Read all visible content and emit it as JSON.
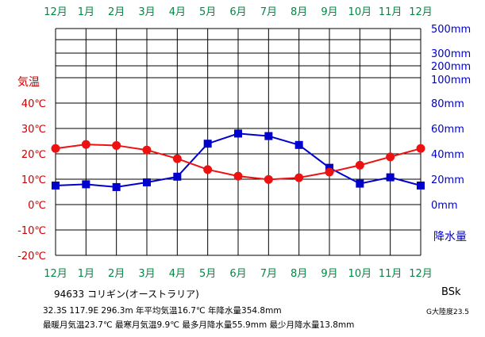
{
  "chart_data": {
    "type": "line",
    "months_top": [
      "12月",
      "1月",
      "2月",
      "3月",
      "4月",
      "5月",
      "6月",
      "7月",
      "8月",
      "9月",
      "10月",
      "11月",
      "12月"
    ],
    "months_bottom": [
      "12月",
      "1月",
      "2月",
      "3月",
      "4月",
      "5月",
      "6月",
      "7月",
      "8月",
      "9月",
      "10月",
      "11月",
      "12月"
    ],
    "temp_axis": {
      "title": "気温",
      "ticks": [
        "40℃",
        "30℃",
        "20℃",
        "10℃",
        "0℃",
        "-10℃",
        "-20℃"
      ],
      "tick_values": [
        40,
        30,
        20,
        10,
        0,
        -10,
        -20
      ],
      "ylim": [
        -20,
        40
      ]
    },
    "precip_axis": {
      "title": "降水量",
      "ticks": [
        "500mm",
        "300mm",
        "200mm",
        "100mm",
        "80mm",
        "60mm",
        "40mm",
        "20mm",
        "0mm"
      ],
      "tick_values": [
        500,
        300,
        200,
        100,
        80,
        60,
        40,
        20,
        0
      ]
    },
    "series": [
      {
        "name": "気温",
        "color": "#ee1111",
        "values": [
          22.1,
          23.7,
          23.3,
          21.5,
          18.1,
          13.8,
          11.2,
          9.9,
          10.6,
          12.8,
          15.5,
          18.8,
          22.1
        ]
      },
      {
        "name": "降水量",
        "color": "#0000cc",
        "values": [
          15.0,
          16.0,
          13.8,
          17.5,
          22.0,
          48.0,
          56.0,
          54.0,
          47.0,
          29.0,
          16.5,
          21.5,
          15.0
        ]
      }
    ],
    "grid": true
  },
  "info": {
    "station": "94633  コリギン(オーストラリア)",
    "stats_line1": "32.3S  117.9E  296.3m 年平均気温16.7℃  年降水量354.8mm",
    "stats_line2": "最暖月気温23.7℃ 最寒月気温9.9℃ 最多月降水量55.9mm 最少月降水量13.8mm",
    "koppen": "BSk",
    "continent": "G大陸度23.5"
  },
  "colors": {
    "temp": "#ee1111",
    "precip": "#0000cc",
    "month": "#008844",
    "axis_red": "#cc0000",
    "axis_blue": "#0000cc"
  }
}
